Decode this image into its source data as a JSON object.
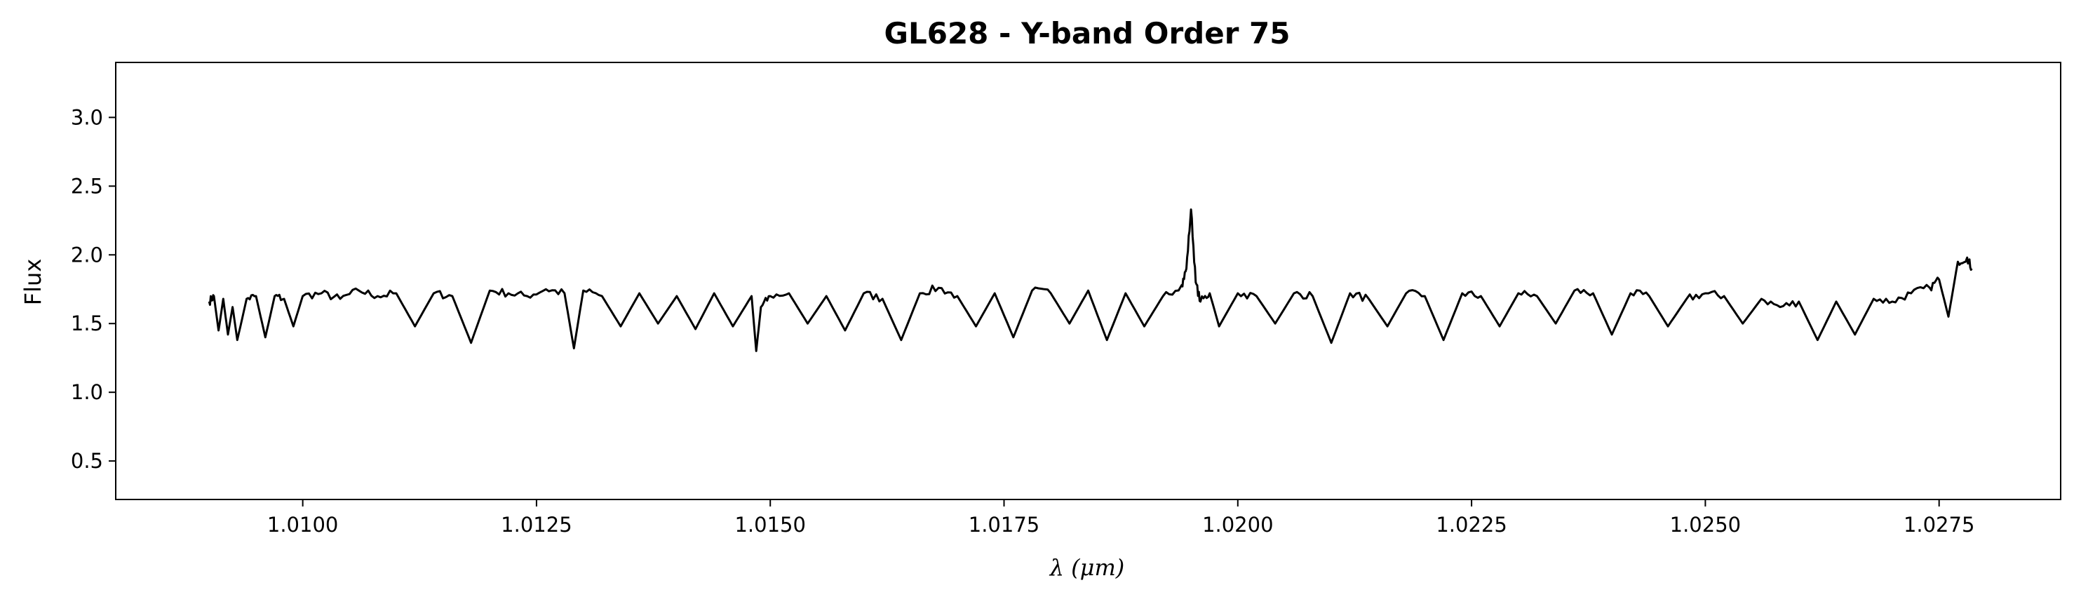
{
  "chart_data": {
    "type": "line",
    "title": "GL628 - Y-band Order 75",
    "xlabel": "λ (μm)",
    "ylabel": "Flux",
    "xlim": [
      1.008,
      1.0288
    ],
    "ylim": [
      0.22,
      3.4
    ],
    "xticks": [
      1.01,
      1.0125,
      1.015,
      1.0175,
      1.02,
      1.0225,
      1.025,
      1.0275
    ],
    "xtick_labels": [
      "1.0100",
      "1.0125",
      "1.0150",
      "1.0175",
      "1.0200",
      "1.0225",
      "1.0250",
      "1.0275"
    ],
    "yticks": [
      0.5,
      1.0,
      1.5,
      2.0,
      2.5,
      3.0
    ],
    "ytick_labels": [
      "0.5",
      "1.0",
      "1.5",
      "2.0",
      "2.5",
      "3.0"
    ],
    "grid": false,
    "line_color": "#000000",
    "series": [
      {
        "x": [
          1.009,
          1.00905,
          1.0091,
          1.00915,
          1.0092,
          1.00925,
          1.0093,
          1.0094,
          1.0095,
          1.0096,
          1.0097,
          1.0098,
          1.0099,
          1.01,
          1.0102,
          1.0104,
          1.0106,
          1.0108,
          1.011,
          1.0112,
          1.0114,
          1.0116,
          1.0118,
          1.012,
          1.0122,
          1.0124,
          1.0126,
          1.0128,
          1.0129,
          1.013,
          1.0132,
          1.0134,
          1.0136,
          1.0138,
          1.014,
          1.0142,
          1.0144,
          1.0146,
          1.0148,
          1.01485,
          1.0149,
          1.015,
          1.0152,
          1.0154,
          1.0156,
          1.0158,
          1.016,
          1.0162,
          1.0164,
          1.0166,
          1.0168,
          1.017,
          1.0172,
          1.0174,
          1.0176,
          1.0178,
          1.018,
          1.0182,
          1.0184,
          1.0186,
          1.0188,
          1.019,
          1.0192,
          1.0194,
          1.01945,
          1.0195,
          1.01955,
          1.0196,
          1.0197,
          1.0198,
          1.02,
          1.0202,
          1.0204,
          1.0206,
          1.0208,
          1.021,
          1.0212,
          1.0214,
          1.0216,
          1.0218,
          1.022,
          1.0222,
          1.0224,
          1.0226,
          1.0228,
          1.023,
          1.0232,
          1.0234,
          1.0236,
          1.0238,
          1.024,
          1.0242,
          1.0244,
          1.0246,
          1.0248,
          1.025,
          1.0252,
          1.0254,
          1.0256,
          1.0258,
          1.026,
          1.0262,
          1.0264,
          1.0266,
          1.0268,
          1.027,
          1.0272,
          1.0274,
          1.0275,
          1.0276,
          1.0277,
          1.0278,
          1.02785
        ],
        "y": [
          1.66,
          1.7,
          1.45,
          1.68,
          1.42,
          1.62,
          1.38,
          1.68,
          1.7,
          1.4,
          1.7,
          1.68,
          1.48,
          1.7,
          1.72,
          1.68,
          1.74,
          1.7,
          1.72,
          1.48,
          1.72,
          1.7,
          1.36,
          1.74,
          1.72,
          1.7,
          1.75,
          1.72,
          1.32,
          1.74,
          1.7,
          1.48,
          1.72,
          1.5,
          1.7,
          1.46,
          1.72,
          1.48,
          1.7,
          1.3,
          1.62,
          1.7,
          1.72,
          1.5,
          1.7,
          1.45,
          1.72,
          1.68,
          1.38,
          1.72,
          1.76,
          1.7,
          1.48,
          1.72,
          1.4,
          1.74,
          1.72,
          1.5,
          1.74,
          1.38,
          1.72,
          1.48,
          1.7,
          1.78,
          1.9,
          2.33,
          1.8,
          1.66,
          1.72,
          1.48,
          1.72,
          1.7,
          1.5,
          1.72,
          1.7,
          1.36,
          1.72,
          1.68,
          1.48,
          1.72,
          1.7,
          1.38,
          1.72,
          1.7,
          1.48,
          1.72,
          1.7,
          1.5,
          1.74,
          1.72,
          1.42,
          1.72,
          1.7,
          1.48,
          1.68,
          1.72,
          1.7,
          1.5,
          1.68,
          1.62,
          1.66,
          1.38,
          1.66,
          1.42,
          1.68,
          1.66,
          1.72,
          1.76,
          1.82,
          1.55,
          1.95,
          1.98,
          1.9
        ]
      }
    ]
  }
}
